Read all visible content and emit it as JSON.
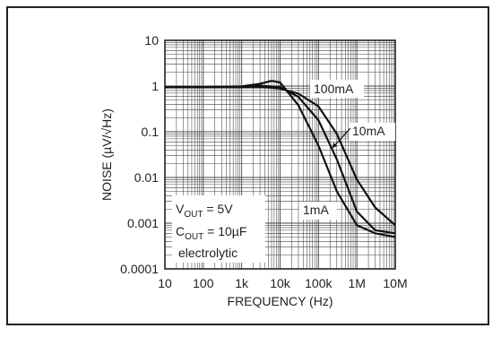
{
  "chart_data": {
    "type": "line",
    "xlabel": "FREQUENCY (Hz)",
    "ylabel": "NOISE (µV/√Hz)",
    "xscale": "log",
    "yscale": "log",
    "xlim": [
      10,
      10000000
    ],
    "ylim": [
      0.0001,
      10
    ],
    "grid": true,
    "x_ticks": [
      {
        "value": 10,
        "label": "10"
      },
      {
        "value": 100,
        "label": "100"
      },
      {
        "value": 1000,
        "label": "1k"
      },
      {
        "value": 10000,
        "label": "10k"
      },
      {
        "value": 100000,
        "label": "100k"
      },
      {
        "value": 1000000,
        "label": "1M"
      },
      {
        "value": 10000000,
        "label": "10M"
      }
    ],
    "y_ticks": [
      {
        "value": 10,
        "label": "10"
      },
      {
        "value": 1,
        "label": "1"
      },
      {
        "value": 0.1,
        "label": "0.1"
      },
      {
        "value": 0.01,
        "label": "0.01"
      },
      {
        "value": 0.001,
        "label": "0.001"
      },
      {
        "value": 0.0001,
        "label": "0.0001"
      }
    ],
    "series": [
      {
        "name": "100mA",
        "x": [
          10,
          100,
          1000,
          3000,
          10000,
          30000,
          100000,
          300000,
          1000000,
          3000000,
          10000000
        ],
        "y": [
          0.95,
          0.95,
          0.95,
          0.96,
          0.88,
          0.68,
          0.36,
          0.09,
          0.009,
          0.0022,
          0.0009
        ]
      },
      {
        "name": "10mA",
        "x": [
          10,
          100,
          1000,
          3000,
          10000,
          30000,
          100000,
          300000,
          1000000,
          3000000,
          10000000
        ],
        "y": [
          0.95,
          0.95,
          0.96,
          1.02,
          0.95,
          0.58,
          0.18,
          0.025,
          0.0018,
          0.0007,
          0.0006
        ]
      },
      {
        "name": "1mA",
        "x": [
          10,
          100,
          1000,
          3000,
          6000,
          10000,
          30000,
          100000,
          300000,
          1000000,
          3000000,
          10000000
        ],
        "y": [
          0.95,
          0.95,
          0.98,
          1.12,
          1.3,
          1.2,
          0.38,
          0.05,
          0.005,
          0.0009,
          0.0006,
          0.0005
        ]
      }
    ],
    "annotations": [
      {
        "text": "100mA"
      },
      {
        "text": "10mA"
      },
      {
        "text": "1mA"
      }
    ],
    "conditions": {
      "line1_main": "V",
      "line1_sub": "OUT",
      "line1_rest": " = 5V",
      "line2_main": "C",
      "line2_sub": "OUT",
      "line2_rest": " = 10µF",
      "line3": "electrolytic"
    },
    "colors": {
      "line": "#111111",
      "grid": "#444444",
      "axis": "#222222"
    }
  }
}
